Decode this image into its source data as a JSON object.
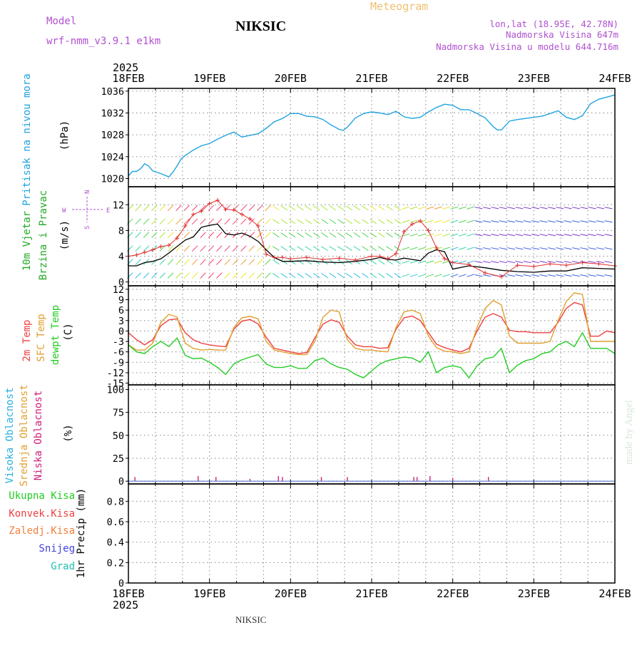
{
  "header": {
    "model_label": "Model",
    "model_name": "wrf-nmm_v3.9.1  e1km",
    "station": "NIKSIC",
    "meteogram_label": "Meteogram",
    "lonlat": "lon,lat (18.95E, 42.78N)",
    "elevation": "Nadmorska Visina 647m",
    "model_elevation": "Nadmorska Visina u modelu 644.716m",
    "watermark": "made by Angel",
    "footer_station": "NIKSIC"
  },
  "colors": {
    "pressure": "#1fa3e0",
    "t2m": "#ee4040",
    "sfc": "#e0a030",
    "dew": "#22cc22",
    "label_purple": "#b050d0",
    "label_orange": "#f0c070",
    "cloud_high": "#2ab0e0",
    "cloud_mid": "#e0a030",
    "cloud_low": "#d0207a",
    "wind_mean": "#000000",
    "wind_gust": "#e03030"
  },
  "chart_data": [
    {
      "type": "line",
      "panel": "pressure",
      "ylabel_parts": [
        "Pritisak na nivou mora"
      ],
      "unit": "(hPa)",
      "ylim": [
        1018.5,
        1036.5
      ],
      "yticks": [
        1020,
        1024,
        1028,
        1032,
        1036
      ],
      "xlim": [
        0,
        6
      ],
      "top_x_year": "2025",
      "top_x_ticks": [
        "18FEB",
        "19FEB",
        "20FEB",
        "21FEB",
        "22FEB",
        "23FEB",
        "24FEB"
      ],
      "grid": true,
      "series": [
        {
          "color_key": "pressure",
          "x": [
            0.0,
            0.05,
            0.1,
            0.15,
            0.2,
            0.25,
            0.3,
            0.4,
            0.5,
            0.55,
            0.6,
            0.65,
            0.7,
            0.8,
            0.9,
            1.0,
            1.1,
            1.2,
            1.3,
            1.4,
            1.5,
            1.6,
            1.7,
            1.8,
            1.9,
            2.0,
            2.1,
            2.2,
            2.3,
            2.4,
            2.5,
            2.6,
            2.65,
            2.7,
            2.8,
            2.9,
            3.0,
            3.1,
            3.2,
            3.3,
            3.4,
            3.5,
            3.6,
            3.7,
            3.8,
            3.9,
            4.0,
            4.1,
            4.2,
            4.3,
            4.4,
            4.5,
            4.55,
            4.6,
            4.7,
            4.8,
            4.9,
            5.0,
            5.1,
            5.2,
            5.3,
            5.4,
            5.5,
            5.6,
            5.7,
            5.8,
            5.9,
            6.0
          ],
          "y": [
            1020.5,
            1021.3,
            1021.3,
            1021.8,
            1022.7,
            1022.3,
            1021.4,
            1020.9,
            1020.3,
            1021.2,
            1022.3,
            1023.6,
            1024.2,
            1025.2,
            1026.0,
            1026.4,
            1027.2,
            1027.9,
            1028.5,
            1027.6,
            1027.9,
            1028.2,
            1029.2,
            1030.4,
            1031.0,
            1031.9,
            1031.9,
            1031.4,
            1031.3,
            1030.8,
            1029.8,
            1029.0,
            1028.8,
            1029.4,
            1031.1,
            1031.9,
            1032.2,
            1032.0,
            1031.7,
            1032.3,
            1031.3,
            1031.0,
            1031.2,
            1032.2,
            1033.0,
            1033.6,
            1033.4,
            1032.6,
            1032.6,
            1031.9,
            1031.1,
            1029.5,
            1028.9,
            1028.9,
            1030.5,
            1030.8,
            1031.0,
            1031.2,
            1031.4,
            1031.9,
            1032.4,
            1031.2,
            1030.8,
            1031.5,
            1033.7,
            1034.5,
            1034.9,
            1035.3
          ]
        }
      ]
    },
    {
      "type": "line",
      "panel": "wind",
      "ylabel_parts": [
        "10m Vjetar",
        "Brzina i Pravac"
      ],
      "unit": "(m/s)",
      "compass": [
        "N",
        "E",
        "S",
        "W"
      ],
      "ylim": [
        -0.6,
        14.8
      ],
      "yticks": [
        0,
        4,
        8,
        12
      ],
      "xlim": [
        0,
        6
      ],
      "grid": true,
      "series": [
        {
          "name_key": "mean",
          "x": [
            0.0,
            0.1,
            0.2,
            0.3,
            0.4,
            0.5,
            0.6,
            0.7,
            0.8,
            0.9,
            1.0,
            1.1,
            1.2,
            1.3,
            1.4,
            1.5,
            1.6,
            1.7,
            1.8,
            1.9,
            2.0,
            2.2,
            2.4,
            2.6,
            2.8,
            3.0,
            3.1,
            3.2,
            3.3,
            3.4,
            3.5,
            3.6,
            3.7,
            3.8,
            3.9,
            4.0,
            4.2,
            4.4,
            4.6,
            4.8,
            5.0,
            5.2,
            5.4,
            5.6,
            5.8,
            6.0
          ],
          "y": [
            2.5,
            2.5,
            3.0,
            3.2,
            3.6,
            4.5,
            5.5,
            6.5,
            7.0,
            8.5,
            8.8,
            9.0,
            7.5,
            7.3,
            7.6,
            7.1,
            6.3,
            5.0,
            3.8,
            3.2,
            3.2,
            3.3,
            3.1,
            3.0,
            3.2,
            3.5,
            3.8,
            3.5,
            3.4,
            3.7,
            3.5,
            3.3,
            4.5,
            5.0,
            4.7,
            2.0,
            2.5,
            2.2,
            1.8,
            1.6,
            1.5,
            1.7,
            1.7,
            2.2,
            2.1,
            2.0
          ]
        },
        {
          "name_key": "gust",
          "x": [
            0.0,
            0.1,
            0.2,
            0.3,
            0.4,
            0.5,
            0.6,
            0.7,
            0.8,
            0.9,
            1.0,
            1.1,
            1.2,
            1.3,
            1.4,
            1.5,
            1.6,
            1.7,
            1.8,
            1.9,
            2.0,
            2.2,
            2.4,
            2.6,
            2.8,
            3.0,
            3.1,
            3.2,
            3.3,
            3.4,
            3.5,
            3.6,
            3.7,
            3.8,
            3.9,
            4.0,
            4.2,
            4.4,
            4.6,
            4.8,
            5.0,
            5.2,
            5.4,
            5.6,
            5.8,
            6.0
          ],
          "y": [
            4.0,
            4.2,
            4.6,
            5.0,
            5.5,
            5.7,
            6.8,
            8.7,
            10.5,
            11.0,
            12.2,
            12.7,
            11.3,
            11.2,
            10.5,
            9.8,
            8.7,
            4.3,
            3.8,
            3.8,
            3.6,
            3.8,
            3.5,
            3.7,
            3.4,
            4.0,
            4.0,
            3.6,
            4.4,
            7.8,
            9.0,
            9.5,
            8.0,
            5.3,
            3.6,
            3.0,
            2.7,
            1.4,
            0.8,
            2.6,
            2.4,
            2.8,
            2.6,
            3.0,
            2.8,
            2.5
          ]
        }
      ]
    },
    {
      "type": "line",
      "panel": "temperature",
      "ylabel_parts": [
        "2m Temp",
        "SFC Temp",
        "dewpt Temp"
      ],
      "unit": "(C)",
      "ylim": [
        -15.5,
        13
      ],
      "yticks": [
        12,
        9,
        6,
        3,
        0,
        -3,
        -6,
        -9,
        -12,
        -15
      ],
      "xlim": [
        0,
        6
      ],
      "grid": true,
      "series": [
        {
          "name_key": "t2m",
          "x": [
            0.0,
            0.1,
            0.2,
            0.3,
            0.4,
            0.5,
            0.6,
            0.7,
            0.8,
            0.9,
            1.0,
            1.1,
            1.2,
            1.3,
            1.4,
            1.5,
            1.6,
            1.7,
            1.8,
            1.9,
            2.0,
            2.1,
            2.2,
            2.3,
            2.4,
            2.5,
            2.6,
            2.7,
            2.8,
            2.9,
            3.0,
            3.1,
            3.2,
            3.3,
            3.4,
            3.5,
            3.6,
            3.7,
            3.8,
            3.9,
            4.0,
            4.1,
            4.2,
            4.3,
            4.4,
            4.5,
            4.6,
            4.7,
            4.8,
            4.9,
            5.0,
            5.1,
            5.2,
            5.3,
            5.4,
            5.5,
            5.6,
            5.7,
            5.8,
            5.9,
            6.0
          ],
          "y": [
            -0.5,
            -2.5,
            -4.0,
            -2.5,
            1.5,
            3.2,
            3.5,
            -0.5,
            -2.5,
            -3.5,
            -4.0,
            -4.3,
            -4.5,
            0.5,
            2.8,
            3.3,
            2.0,
            -1.8,
            -5.0,
            -5.5,
            -6.0,
            -6.5,
            -6.2,
            -2.0,
            2.0,
            3.2,
            2.5,
            -1.5,
            -4.0,
            -4.5,
            -4.5,
            -5.0,
            -4.8,
            0.5,
            3.8,
            4.3,
            3.0,
            -0.5,
            -3.8,
            -4.8,
            -5.5,
            -6.0,
            -5.0,
            0.0,
            4.0,
            5.0,
            4.0,
            0.2,
            -0.2,
            -0.2,
            -0.5,
            -0.5,
            -0.5,
            2.5,
            6.5,
            8.2,
            7.5,
            -1.5,
            -1.5,
            0.0,
            -0.5
          ]
        },
        {
          "name_key": "sfc",
          "x": [
            0.0,
            0.1,
            0.2,
            0.3,
            0.4,
            0.5,
            0.6,
            0.7,
            0.8,
            0.9,
            1.0,
            1.1,
            1.2,
            1.3,
            1.4,
            1.5,
            1.6,
            1.7,
            1.8,
            1.9,
            2.0,
            2.1,
            2.2,
            2.3,
            2.4,
            2.5,
            2.6,
            2.7,
            2.8,
            2.9,
            3.0,
            3.1,
            3.2,
            3.3,
            3.4,
            3.5,
            3.6,
            3.7,
            3.8,
            3.9,
            4.0,
            4.1,
            4.2,
            4.3,
            4.4,
            4.5,
            4.6,
            4.7,
            4.8,
            4.9,
            5.0,
            5.1,
            5.2,
            5.3,
            5.4,
            5.5,
            5.6,
            5.7,
            5.8,
            5.9,
            6.0
          ],
          "y": [
            -4.0,
            -5.5,
            -5.5,
            -3.5,
            2.5,
            4.8,
            4.0,
            -3.5,
            -5.0,
            -5.5,
            -5.3,
            -5.5,
            -5.5,
            1.0,
            3.8,
            4.2,
            3.5,
            -3.0,
            -5.5,
            -6.0,
            -6.5,
            -6.8,
            -6.8,
            -3.0,
            4.0,
            6.0,
            5.5,
            -2.5,
            -5.0,
            -5.5,
            -5.5,
            -5.8,
            -6.0,
            1.0,
            5.5,
            6.0,
            5.0,
            -1.5,
            -4.8,
            -5.8,
            -6.0,
            -6.5,
            -6.0,
            1.0,
            6.5,
            8.8,
            7.5,
            -1.5,
            -3.5,
            -3.5,
            -3.5,
            -3.5,
            -3.0,
            3.0,
            8.5,
            11.0,
            10.5,
            -3.0,
            -3.0,
            -3.0,
            -3.0
          ]
        },
        {
          "name_key": "dew",
          "x": [
            0.0,
            0.1,
            0.2,
            0.3,
            0.4,
            0.5,
            0.6,
            0.7,
            0.8,
            0.9,
            1.0,
            1.1,
            1.2,
            1.3,
            1.4,
            1.5,
            1.6,
            1.7,
            1.8,
            1.9,
            2.0,
            2.1,
            2.2,
            2.3,
            2.4,
            2.5,
            2.6,
            2.7,
            2.8,
            2.9,
            3.0,
            3.1,
            3.2,
            3.3,
            3.4,
            3.5,
            3.6,
            3.7,
            3.8,
            3.9,
            4.0,
            4.1,
            4.2,
            4.3,
            4.4,
            4.5,
            4.6,
            4.7,
            4.8,
            4.9,
            5.0,
            5.1,
            5.2,
            5.3,
            5.4,
            5.5,
            5.6,
            5.7,
            5.8,
            5.9,
            6.0
          ],
          "y": [
            -4.0,
            -6.0,
            -6.5,
            -4.5,
            -3.0,
            -4.5,
            -2.0,
            -7.0,
            -8.0,
            -7.8,
            -9.0,
            -10.5,
            -12.5,
            -9.5,
            -8.3,
            -7.5,
            -6.8,
            -9.5,
            -10.5,
            -10.5,
            -10.0,
            -10.8,
            -10.7,
            -8.5,
            -7.8,
            -9.5,
            -10.5,
            -11.0,
            -12.5,
            -13.5,
            -11.5,
            -9.5,
            -8.5,
            -8.0,
            -7.5,
            -7.8,
            -9.0,
            -6.0,
            -12.0,
            -10.5,
            -10.0,
            -10.5,
            -13.5,
            -10.0,
            -8.0,
            -7.5,
            -5.0,
            -12.0,
            -9.8,
            -8.5,
            -8.0,
            -6.5,
            -6.0,
            -4.0,
            -3.0,
            -4.5,
            -0.5,
            -5.0,
            -5.0,
            -5.0,
            -6.5
          ]
        }
      ]
    },
    {
      "type": "bar",
      "panel": "clouds",
      "ylabel_parts": [
        "Visoka Oblacnost",
        "Srednja Oblacnost",
        "Niska Oblacnost"
      ],
      "unit": "(%)",
      "ylim": [
        -3,
        105
      ],
      "yticks": [
        0,
        25,
        50,
        75,
        100
      ],
      "xlim": [
        0,
        6
      ],
      "grid": true,
      "series": [
        {
          "name_key": "low",
          "x": [
            0.08,
            0.86,
            1.08,
            1.5,
            1.85,
            1.9,
            2.38,
            2.7,
            3.52,
            3.56,
            3.72,
            4.0,
            4.44
          ],
          "y": [
            3,
            4,
            3,
            1,
            4,
            3,
            3,
            3,
            3,
            3,
            4,
            2,
            3
          ]
        }
      ]
    },
    {
      "type": "bar",
      "panel": "precipitation",
      "ylabel_parts": [
        "Ukupna Kisa",
        "Konvek.Kisa",
        "Zaledj.Kisa",
        "Snijeg",
        "Grad"
      ],
      "ylabel_right": "1hr Precip",
      "unit": "(mm)",
      "ylim": [
        0,
        0.97
      ],
      "yticks": [
        0,
        0.2,
        0.4,
        0.6,
        0.8
      ],
      "ytick_labels": [
        "0",
        "0.2",
        "0.4",
        "0.6",
        "0.8"
      ],
      "xlim": [
        0,
        6
      ],
      "bottom_x_year": "2025",
      "bottom_x_ticks": [
        "18FEB",
        "19FEB",
        "20FEB",
        "21FEB",
        "22FEB",
        "23FEB",
        "24FEB"
      ],
      "grid": true,
      "series": []
    }
  ]
}
